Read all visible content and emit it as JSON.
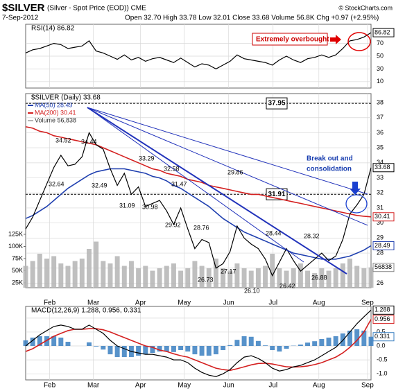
{
  "header": {
    "symbol": "$SILVER",
    "desc": "(Silver - Spot Price (EOD)) CME",
    "date": "7-Sep-2012",
    "quote": "Open 32.70 High 33.78 Low 32.01 Close 33.68 Volume 56.8K Chg +0.97 (+2.95%)",
    "credit": "© StockCharts.com"
  },
  "chart_data": [
    {
      "type": "line",
      "title": "RSI(14) 86.82",
      "annotation": "Extremely overbought",
      "x": [
        0,
        1,
        2,
        3,
        4,
        5,
        6,
        7,
        8,
        9,
        10,
        11,
        12,
        13,
        14,
        15,
        16,
        17,
        18,
        19,
        20,
        21,
        22,
        23,
        24,
        25,
        26,
        27,
        28,
        29,
        30,
        31,
        32,
        33,
        34,
        35,
        36,
        37,
        38,
        39,
        40,
        41,
        42,
        43,
        44,
        45,
        46,
        47,
        48,
        49
      ],
      "xlim": [
        0,
        49
      ],
      "ylim": [
        0,
        100
      ],
      "yticks": [
        10,
        30,
        50,
        70
      ],
      "grid": true,
      "series": [
        {
          "name": "RSI(14)",
          "color": "#000000",
          "last_label": "86.82",
          "values": [
            55,
            60,
            62,
            66,
            70,
            68,
            62,
            64,
            66,
            74,
            58,
            55,
            50,
            45,
            52,
            44,
            48,
            42,
            46,
            48,
            44,
            40,
            47,
            40,
            33,
            38,
            36,
            30,
            36,
            42,
            52,
            46,
            44,
            42,
            40,
            36,
            44,
            50,
            44,
            40,
            46,
            48,
            52,
            48,
            52,
            62,
            74,
            76,
            80,
            86.82
          ]
        }
      ]
    },
    {
      "type": "line",
      "title": "$SILVER (Daily) 33.68",
      "annotation": [
        "Break out and",
        "consolidation"
      ],
      "price_labels": [
        "34.52",
        "34.44",
        "33.29",
        "32.58",
        "32.64",
        "32.49",
        "31.47",
        "31.09",
        "30.98",
        "29.92",
        "29.86",
        "28.76",
        "28.44",
        "28.32",
        "27.17",
        "26.73",
        "26.10",
        "26.42",
        "26.88"
      ],
      "hlines": [
        {
          "value": 37.95,
          "label": "37.95"
        },
        {
          "value": 31.91,
          "label": "31.91"
        }
      ],
      "x": [
        0,
        1,
        2,
        3,
        4,
        5,
        6,
        7,
        8,
        9,
        10,
        11,
        12,
        13,
        14,
        15,
        16,
        17,
        18,
        19,
        20,
        21,
        22,
        23,
        24,
        25,
        26,
        27,
        28,
        29,
        30,
        31,
        32,
        33,
        34,
        35,
        36,
        37,
        38,
        39,
        40,
        41,
        42,
        43,
        44,
        45,
        46,
        47,
        48,
        49
      ],
      "xlim": [
        0,
        49
      ],
      "xticks": [
        {
          "value": 3.4,
          "label": "Feb"
        },
        {
          "value": 9.6,
          "label": "Mar"
        },
        {
          "value": 16.3,
          "label": "Apr"
        },
        {
          "value": 22.5,
          "label": "May"
        },
        {
          "value": 28.8,
          "label": "Jun"
        },
        {
          "value": 35.1,
          "label": "Jul"
        },
        {
          "value": 41.6,
          "label": "Aug"
        },
        {
          "value": 48.5,
          "label": "Sep"
        }
      ],
      "ylim": [
        25.7,
        38.6
      ],
      "yticks": [
        26,
        27,
        28,
        29,
        30,
        31,
        32,
        33,
        34,
        35,
        36,
        37,
        38
      ],
      "y2lim": [
        15000,
        415000
      ],
      "y2ticks": [
        {
          "value": 25000,
          "label": "25K"
        },
        {
          "value": 50000,
          "label": "50K"
        },
        {
          "value": 75000,
          "label": "75K"
        },
        {
          "value": 100000,
          "label": "100K"
        },
        {
          "value": 125000,
          "label": "125K"
        }
      ],
      "grid": true,
      "series": [
        {
          "name": "Volume 56,838",
          "type": "bar",
          "axis": "y2",
          "color": "#b4b4b4",
          "last_label": "56838",
          "values": [
            60000,
            70000,
            85000,
            75000,
            80000,
            65000,
            60000,
            70000,
            75000,
            95000,
            110000,
            70000,
            65000,
            80000,
            60000,
            70000,
            55000,
            60000,
            50000,
            55000,
            60000,
            65000,
            50000,
            55000,
            70000,
            60000,
            55000,
            75000,
            55000,
            50000,
            65000,
            55000,
            50000,
            55000,
            60000,
            85000,
            55000,
            50000,
            55000,
            65000,
            50000,
            45000,
            55000,
            50000,
            55000,
            65000,
            75000,
            60000,
            55000,
            56838
          ]
        },
        {
          "name": "MA(200) 30.41",
          "color": "#d42020",
          "last_label": "30.41",
          "values": [
            36.4,
            36.3,
            36.1,
            36.0,
            35.8,
            35.7,
            35.6,
            35.5,
            35.4,
            35.3,
            35.2,
            35.0,
            34.8,
            34.6,
            34.4,
            34.2,
            34.0,
            33.8,
            33.6,
            33.5,
            33.3,
            33.2,
            33.1,
            32.9,
            32.8,
            32.7,
            32.5,
            32.4,
            32.3,
            32.2,
            32.1,
            32.0,
            31.9,
            31.9,
            31.8,
            31.7,
            31.6,
            31.5,
            31.4,
            31.3,
            31.2,
            31.1,
            31.0,
            30.9,
            30.8,
            30.7,
            30.6,
            30.5,
            30.45,
            30.41
          ]
        },
        {
          "name": "MA(50) 28.49",
          "color": "#2040b0",
          "last_label": "28.49",
          "values": [
            30.3,
            30.5,
            30.8,
            31.1,
            31.5,
            31.9,
            32.3,
            32.6,
            32.9,
            33.2,
            33.4,
            33.5,
            33.6,
            33.6,
            33.6,
            33.5,
            33.4,
            33.3,
            33.1,
            33.0,
            32.8,
            32.5,
            32.3,
            32.0,
            31.7,
            31.4,
            31.1,
            30.7,
            30.3,
            30.0,
            29.7,
            29.4,
            29.2,
            29.0,
            28.8,
            28.6,
            28.4,
            28.2,
            28.0,
            27.9,
            27.8,
            27.7,
            27.6,
            27.6,
            27.6,
            27.7,
            27.8,
            28.0,
            28.2,
            28.49
          ]
        },
        {
          "name": "$SILVER",
          "color": "#000000",
          "last_label": "33.68",
          "values": [
            29.6,
            30.4,
            31.5,
            32.6,
            33.7,
            34.5,
            33.8,
            33.9,
            34.4,
            36.0,
            35.2,
            34.9,
            33.6,
            32.5,
            33.3,
            31.9,
            32.4,
            31.1,
            31.3,
            31.5,
            30.8,
            29.9,
            31.0,
            29.6,
            28.3,
            28.9,
            28.7,
            27.0,
            27.3,
            28.1,
            29.8,
            29.0,
            28.6,
            28.3,
            27.6,
            26.5,
            27.4,
            28.3,
            27.5,
            26.8,
            27.2,
            27.6,
            28.0,
            27.5,
            27.8,
            28.9,
            30.6,
            31.2,
            31.9,
            33.68
          ]
        }
      ]
    },
    {
      "type": "line",
      "title": "MACD(12,26,9) 1.288, 0.956, 0.331",
      "x": [
        0,
        1,
        2,
        3,
        4,
        5,
        6,
        7,
        8,
        9,
        10,
        11,
        12,
        13,
        14,
        15,
        16,
        17,
        18,
        19,
        20,
        21,
        22,
        23,
        24,
        25,
        26,
        27,
        28,
        29,
        30,
        31,
        32,
        33,
        34,
        35,
        36,
        37,
        38,
        39,
        40,
        41,
        42,
        43,
        44,
        45,
        46,
        47,
        48,
        49
      ],
      "xlim": [
        0,
        49
      ],
      "xticks": [
        {
          "value": 3.4,
          "label": "Feb"
        },
        {
          "value": 9.6,
          "label": "Mar"
        },
        {
          "value": 16.3,
          "label": "Apr"
        },
        {
          "value": 22.5,
          "label": "May"
        },
        {
          "value": 28.8,
          "label": "Jun"
        },
        {
          "value": 35.1,
          "label": "Jul"
        },
        {
          "value": 41.6,
          "label": "Aug"
        },
        {
          "value": 48.5,
          "label": "Sep"
        }
      ],
      "ylim": [
        -1.22,
        1.42
      ],
      "yticks": [
        {
          "value": -1,
          "label": "-1.0"
        },
        {
          "value": -0.5,
          "label": "-0.5"
        },
        {
          "value": 0,
          "label": "0.0"
        },
        {
          "value": 0.5,
          "label": "0.5"
        },
        {
          "value": 1,
          "label": "1.0"
        }
      ],
      "grid": true,
      "series": [
        {
          "name": "Histogram",
          "type": "bar",
          "color": "#3a7fc1",
          "last_label": "0.331",
          "values": [
            0.2,
            0.3,
            0.35,
            0.35,
            0.35,
            0.3,
            0.15,
            0.0,
            0.0,
            0.13,
            -0.02,
            -0.13,
            -0.3,
            -0.4,
            -0.4,
            -0.4,
            -0.35,
            -0.3,
            -0.25,
            -0.2,
            -0.2,
            -0.22,
            -0.15,
            -0.2,
            -0.3,
            -0.35,
            -0.35,
            -0.3,
            -0.15,
            0.03,
            0.22,
            0.35,
            0.33,
            0.18,
            0.02,
            -0.15,
            -0.2,
            -0.1,
            0.01,
            0.05,
            0.12,
            0.17,
            0.25,
            0.3,
            0.35,
            0.45,
            0.55,
            0.6,
            0.55,
            0.331
          ]
        },
        {
          "name": "Signal",
          "color": "#d42020",
          "last_label": "0.956",
          "values": [
            -0.2,
            -0.1,
            0.05,
            0.2,
            0.35,
            0.45,
            0.55,
            0.6,
            0.6,
            0.62,
            0.62,
            0.58,
            0.5,
            0.4,
            0.3,
            0.2,
            0.1,
            0.0,
            -0.05,
            -0.15,
            -0.2,
            -0.28,
            -0.35,
            -0.4,
            -0.5,
            -0.6,
            -0.7,
            -0.8,
            -0.85,
            -0.88,
            -0.82,
            -0.75,
            -0.68,
            -0.63,
            -0.62,
            -0.65,
            -0.7,
            -0.75,
            -0.76,
            -0.75,
            -0.72,
            -0.67,
            -0.6,
            -0.5,
            -0.4,
            -0.25,
            -0.05,
            0.2,
            0.5,
            0.956
          ]
        },
        {
          "name": "MACD",
          "color": "#000000",
          "last_label": "1.288",
          "values": [
            0.0,
            0.2,
            0.4,
            0.55,
            0.7,
            0.75,
            0.7,
            0.6,
            0.6,
            0.75,
            0.6,
            0.45,
            0.2,
            0.0,
            -0.1,
            -0.2,
            -0.25,
            -0.3,
            -0.3,
            -0.35,
            -0.4,
            -0.5,
            -0.5,
            -0.6,
            -0.8,
            -0.95,
            -1.05,
            -1.1,
            -1.0,
            -0.85,
            -0.6,
            -0.4,
            -0.35,
            -0.45,
            -0.6,
            -0.8,
            -0.9,
            -0.85,
            -0.75,
            -0.7,
            -0.6,
            -0.5,
            -0.35,
            -0.2,
            -0.05,
            0.2,
            0.5,
            0.8,
            1.05,
            1.288
          ]
        }
      ]
    }
  ]
}
